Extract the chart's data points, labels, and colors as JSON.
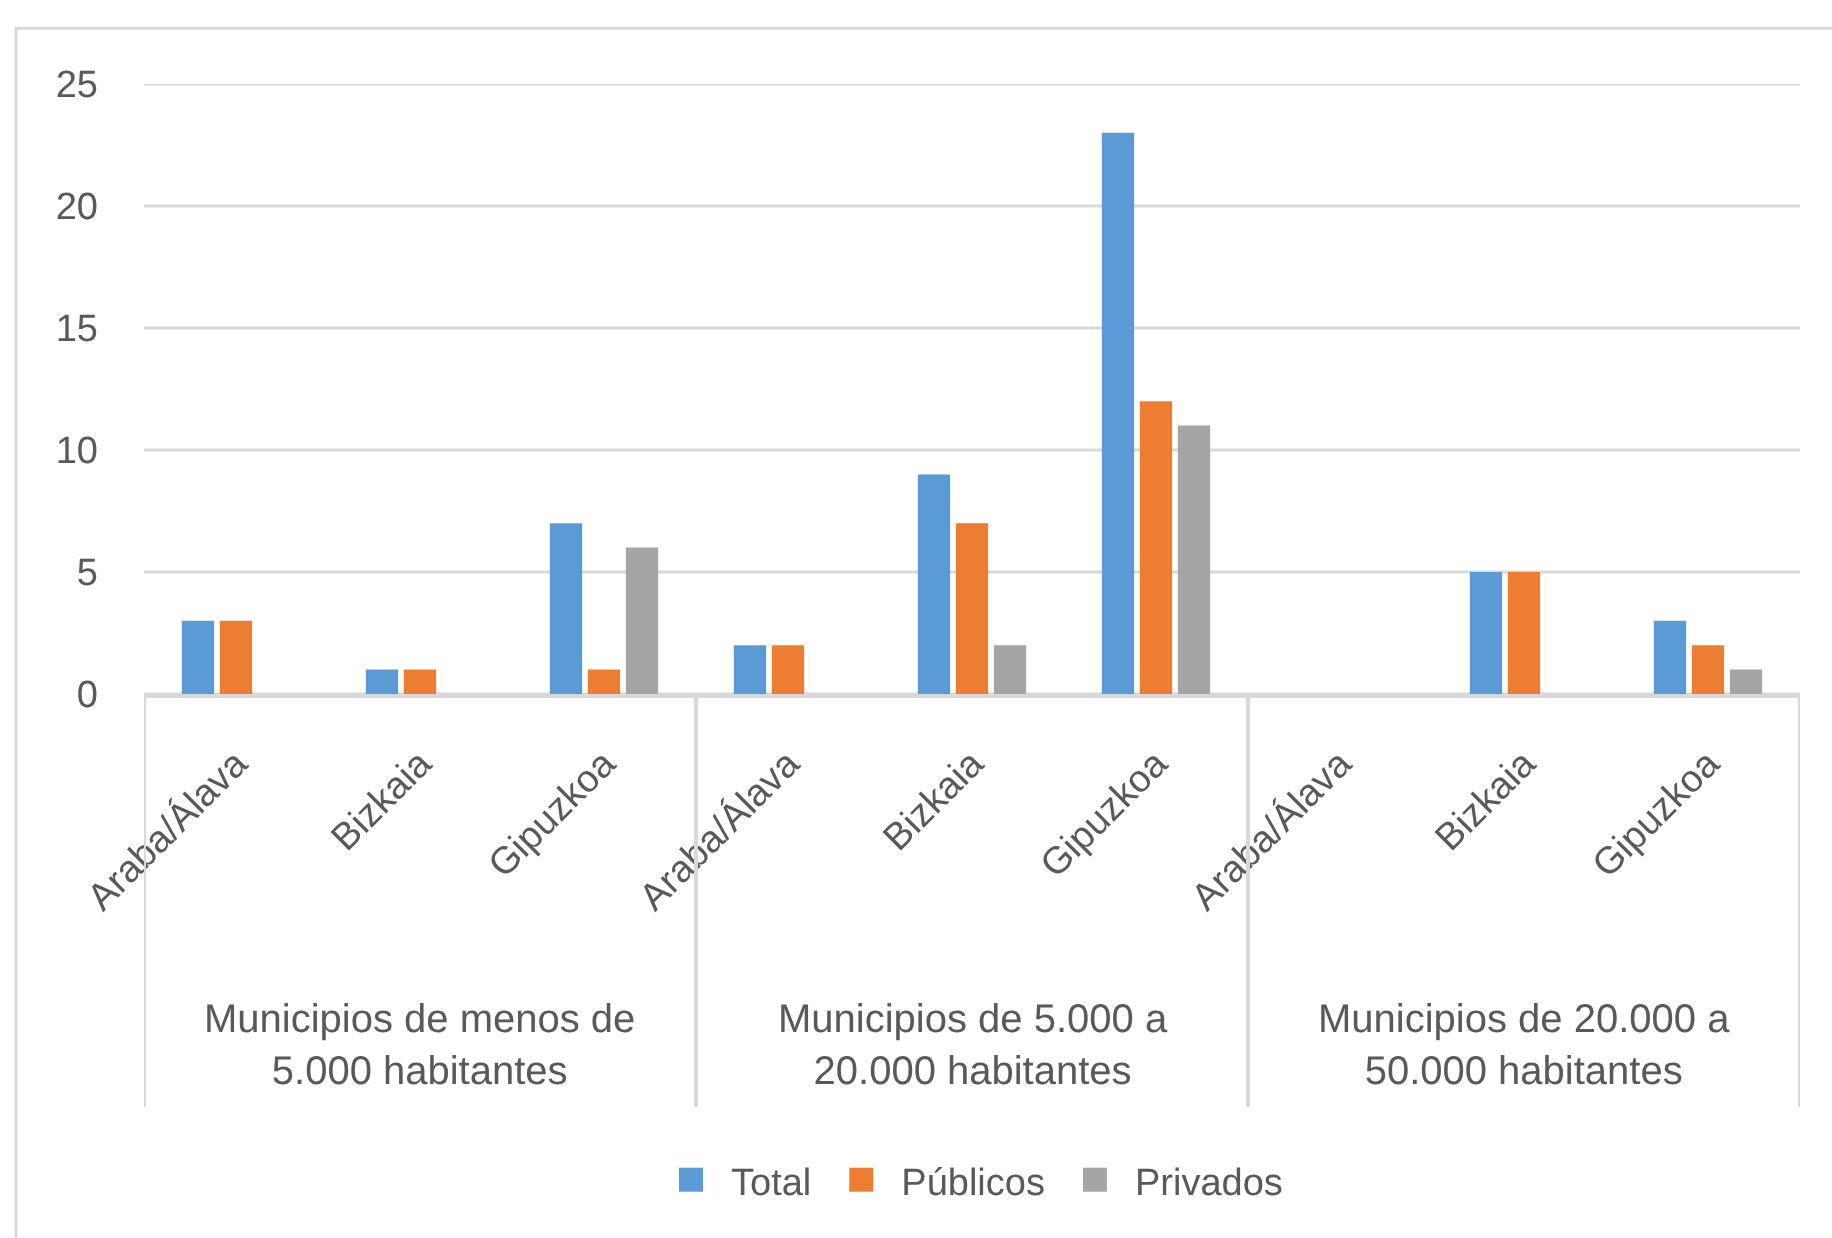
{
  "chart_data": {
    "type": "bar",
    "categories": [
      "Araba/Álava",
      "Bizkaia",
      "Gipuzkoa",
      "Araba/Álava",
      "Bizkaia",
      "Gipuzkoa",
      "Araba/Álava",
      "Bizkaia",
      "Gipuzkoa"
    ],
    "series": [
      {
        "name": "Total",
        "color": "#5b9bd5",
        "values": [
          3,
          1,
          7,
          2,
          9,
          23,
          0,
          5,
          3
        ]
      },
      {
        "name": "Públicos",
        "color": "#ed7d31",
        "values": [
          3,
          1,
          1,
          2,
          7,
          12,
          0,
          5,
          2
        ]
      },
      {
        "name": "Privados",
        "color": "#a5a5a5",
        "values": [
          0,
          0,
          6,
          0,
          2,
          11,
          0,
          0,
          1
        ]
      }
    ],
    "ylim": [
      0,
      25
    ],
    "yticks": [
      0,
      5,
      10,
      15,
      20,
      25
    ],
    "grid": "y",
    "legend": "bottom",
    "annotations": [
      "Municipios de menos de 5.000 habitantes",
      "Municipios de 5.000 a 20.000 habitantes",
      "Municipios de 20.000 a 50.000 habitantes"
    ]
  }
}
